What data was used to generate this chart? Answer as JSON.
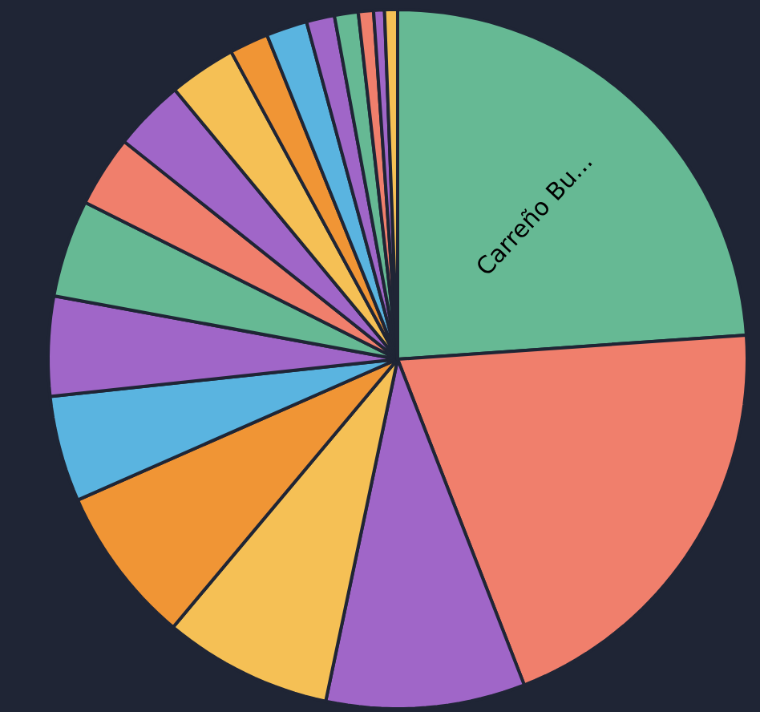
{
  "chart_data": {
    "type": "pie",
    "categories": [
      "Carreño Bu...",
      null,
      null,
      null,
      null,
      null,
      null,
      null,
      null,
      null,
      null,
      null,
      null,
      null,
      null,
      null,
      null,
      null
    ],
    "values": [
      23.9,
      20.2,
      9.2,
      7.8,
      7.3,
      4.9,
      4.6,
      4.5,
      3.3,
      3.3,
      3.1,
      1.8,
      1.9,
      1.3,
      1.1,
      0.7,
      0.5,
      0.6
    ],
    "colors": [
      "#66b994",
      "#f07f6c",
      "#a066c8",
      "#f5c055",
      "#f09535",
      "#5ab4e0",
      "#a066c8",
      "#66b994",
      "#f07f6c",
      "#a066c8",
      "#f5c055",
      "#f09535",
      "#5ab4e0",
      "#a066c8",
      "#66b994",
      "#f07f6c",
      "#a066c8",
      "#f5c055"
    ]
  }
}
